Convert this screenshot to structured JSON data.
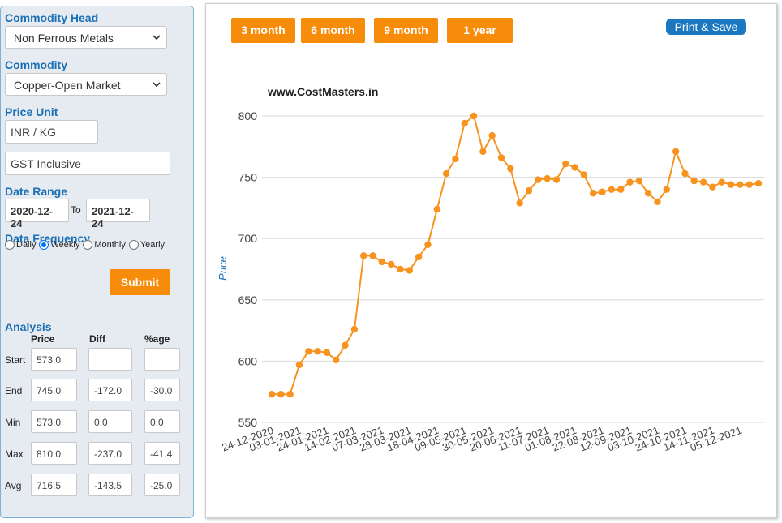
{
  "form": {
    "commodity_head_label": "Commodity Head",
    "commodity_head_value": "Non Ferrous Metals",
    "commodity_label": "Commodity",
    "commodity_value": "Copper-Open Market",
    "price_unit_label": "Price Unit",
    "price_unit_value": "INR / KG",
    "gst_value": "GST Inclusive",
    "date_range_label": "Date Range",
    "date_from": "2020-12-24",
    "date_to_label": "To",
    "date_to": "2021-12-24",
    "data_frequency_label": "Data Frequency",
    "frequencies": [
      "Daily",
      "Weekly",
      "Monthly",
      "Yearly"
    ],
    "selected_frequency": "Weekly",
    "submit_label": "Submit"
  },
  "analysis": {
    "title": "Analysis",
    "columns": [
      "Price",
      "Diff",
      "%age"
    ],
    "rows": [
      {
        "label": "Start",
        "price": "573.0",
        "diff": "",
        "pct": ""
      },
      {
        "label": "End",
        "price": "745.0",
        "diff": "-172.0",
        "pct": "-30.0"
      },
      {
        "label": "Min",
        "price": "573.0",
        "diff": "0.0",
        "pct": "0.0"
      },
      {
        "label": "Max",
        "price": "810.0",
        "diff": "-237.0",
        "pct": "-41.4"
      },
      {
        "label": "Avg",
        "price": "716.5",
        "diff": "-143.5",
        "pct": "-25.0"
      }
    ]
  },
  "toolbar": {
    "ranges": [
      "3 month",
      "6 month",
      "9 month",
      "1 year"
    ],
    "print_label": "Print & Save"
  },
  "colors": {
    "accent": "#f78c0a",
    "line": "#f7931e",
    "label_blue": "#1a6fb4"
  },
  "chart_data": {
    "type": "line",
    "title": "www.CostMasters.in",
    "xlabel": "",
    "ylabel": "Price",
    "ylim": [
      550,
      800
    ],
    "yticks": [
      550,
      600,
      650,
      700,
      750,
      800
    ],
    "grid": true,
    "xtick_labels": [
      "24-12-2020",
      "03-01-2021",
      "24-01-2021",
      "14-02-2021",
      "07-03-2021",
      "28-03-2021",
      "18-04-2021",
      "09-05-2021",
      "30-05-2021",
      "20-06-2021",
      "11-07-2021",
      "01-08-2021",
      "22-08-2021",
      "12-09-2021",
      "03-10-2021",
      "24-10-2021",
      "14-11-2021",
      "05-12-2021"
    ],
    "series": [
      {
        "name": "",
        "values": [
          573,
          573,
          573,
          597,
          608,
          608,
          607,
          601,
          613,
          626,
          686,
          686,
          681,
          679,
          675,
          674,
          685,
          695,
          724,
          753,
          765,
          794,
          800,
          771,
          784,
          766,
          757,
          729,
          739,
          748,
          749,
          748,
          761,
          758,
          752,
          737,
          738,
          740,
          740,
          746,
          747,
          737,
          730,
          740,
          771,
          753,
          747,
          746,
          742,
          746,
          744,
          744,
          744,
          745
        ]
      }
    ]
  }
}
